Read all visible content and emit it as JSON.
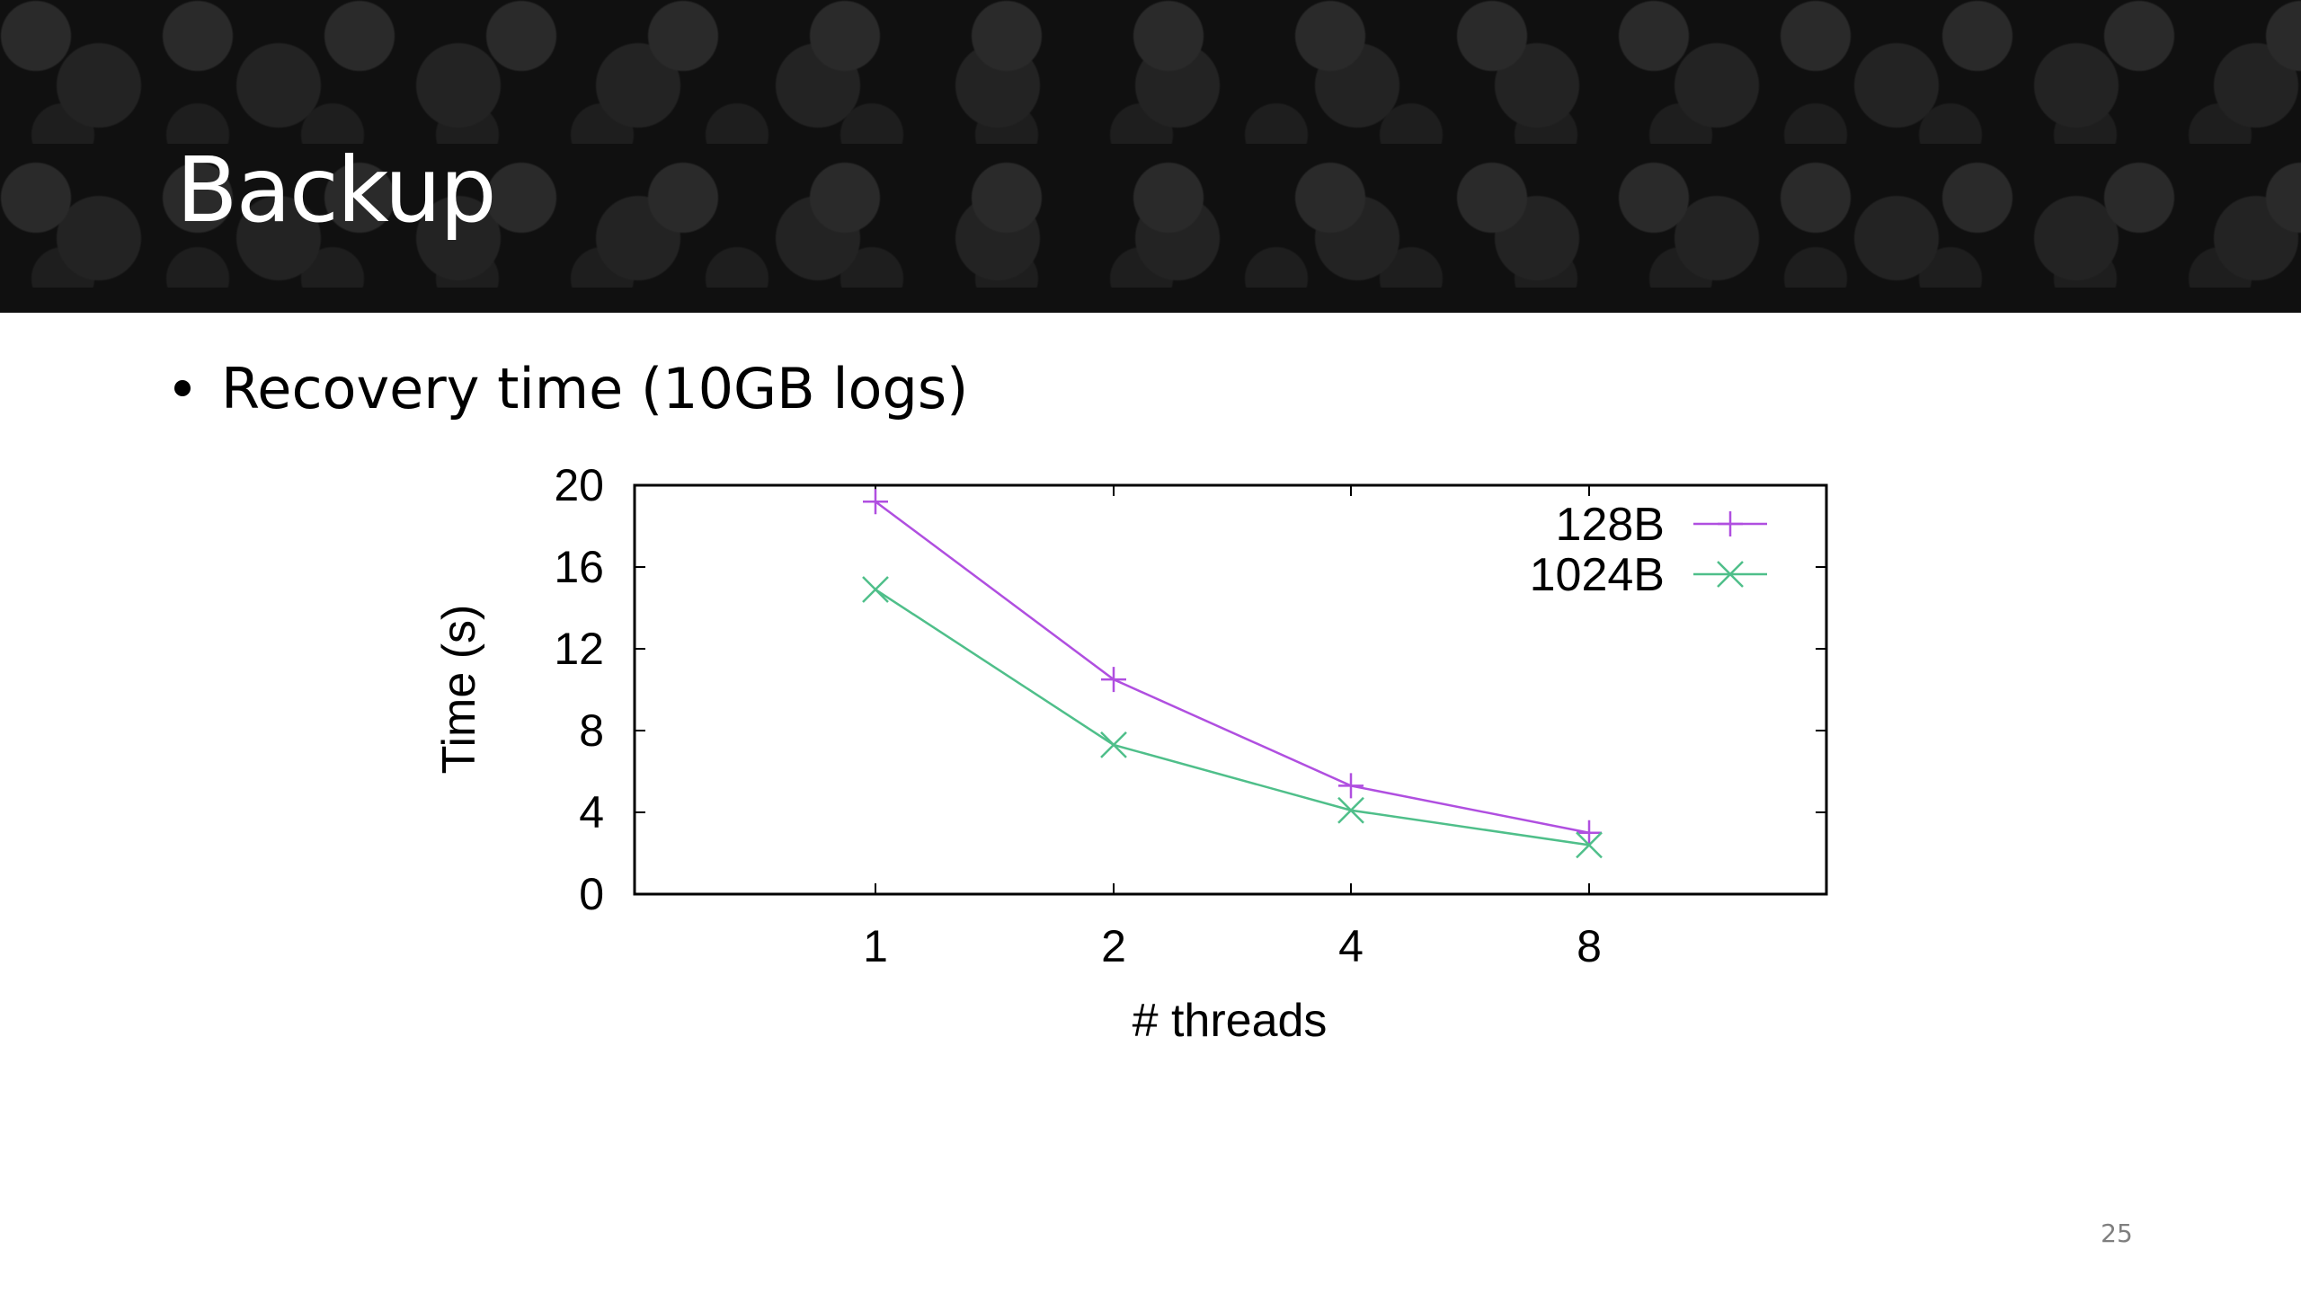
{
  "slide": {
    "title": "Backup",
    "bullet": "Recovery time (10GB logs)",
    "page_number": "25"
  },
  "colors": {
    "header_background": "#101010",
    "series_128B": "#b04fe0",
    "series_1024B": "#4fbf8a"
  },
  "chart_data": {
    "type": "line",
    "title": "",
    "xlabel": "# threads",
    "ylabel": "Time (s)",
    "categories": [
      "1",
      "2",
      "4",
      "8"
    ],
    "ylim": [
      0,
      20
    ],
    "yticks": [
      0,
      4,
      8,
      12,
      16,
      20
    ],
    "grid": false,
    "legend_position": "top-right",
    "series": [
      {
        "name": "128B",
        "marker": "plus",
        "color": "#b04fe0",
        "values": [
          19.2,
          10.5,
          5.3,
          3.0
        ]
      },
      {
        "name": "1024B",
        "marker": "cross",
        "color": "#4fbf8a",
        "values": [
          14.9,
          7.3,
          4.1,
          2.4
        ]
      }
    ]
  }
}
